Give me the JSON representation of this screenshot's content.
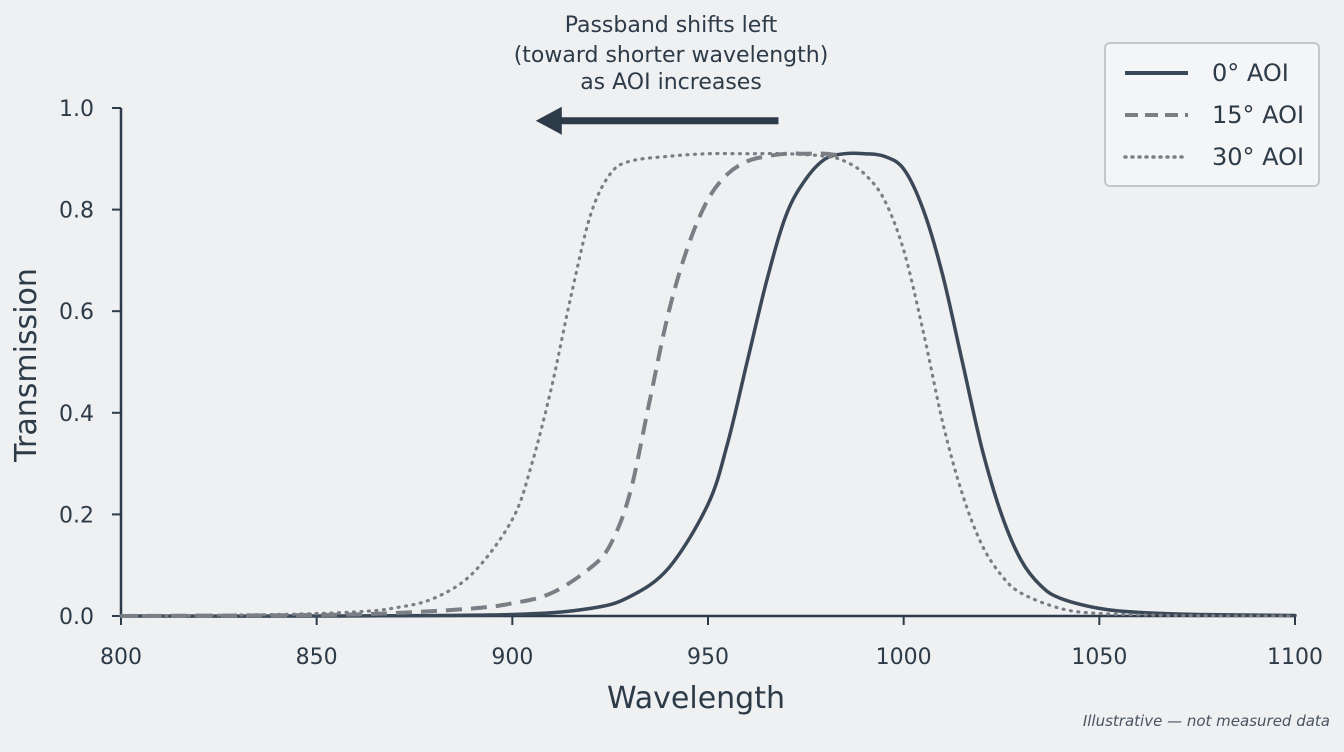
{
  "chart_data": {
    "type": "line",
    "xlabel": "Wavelength",
    "ylabel": "Transmission",
    "xlim": [
      800,
      1100
    ],
    "ylim": [
      0,
      1.0
    ],
    "x_ticks": [
      "800",
      "850",
      "900",
      "950",
      "1000",
      "1050",
      "1100"
    ],
    "y_ticks": [
      "0.0",
      "0.2",
      "0.4",
      "0.6",
      "0.8",
      "1.0"
    ],
    "grid": false,
    "legend_position": "top-right",
    "annotation": {
      "lines": [
        "Passband shifts left",
        "(toward shorter wavelength)",
        "as AOI increases"
      ],
      "arrow_from_x": 968,
      "arrow_to_x": 906,
      "arrow_y": 0.975
    },
    "footnote": "Illustrative — not measured data",
    "series": [
      {
        "name": "0° AOI",
        "style": "solid",
        "color": "#3a4857",
        "x": [
          800,
          850,
          900,
          920,
          930,
          940,
          950,
          955,
          960,
          965,
          970,
          975,
          980,
          985,
          990,
          995,
          1000,
          1005,
          1010,
          1015,
          1020,
          1025,
          1030,
          1035,
          1040,
          1050,
          1060,
          1075,
          1100
        ],
        "y": [
          0.0,
          0.0,
          0.003,
          0.015,
          0.038,
          0.095,
          0.22,
          0.34,
          0.5,
          0.66,
          0.79,
          0.86,
          0.9,
          0.91,
          0.91,
          0.905,
          0.88,
          0.8,
          0.67,
          0.5,
          0.33,
          0.2,
          0.11,
          0.06,
          0.035,
          0.015,
          0.007,
          0.003,
          0.001
        ]
      },
      {
        "name": "15° AOI",
        "style": "dashed",
        "color": "#7b7f85",
        "x": [
          800,
          850,
          870,
          890,
          900,
          910,
          920,
          925,
          930,
          935,
          940,
          945,
          950,
          955,
          960,
          965,
          970,
          975,
          980,
          985
        ],
        "y": [
          0.0,
          0.002,
          0.006,
          0.015,
          0.025,
          0.045,
          0.095,
          0.14,
          0.24,
          0.42,
          0.6,
          0.73,
          0.82,
          0.87,
          0.895,
          0.905,
          0.91,
          0.91,
          0.91,
          0.905
        ]
      },
      {
        "name": "30° AOI",
        "style": "dotted",
        "color": "#7b7f85",
        "x": [
          800,
          840,
          860,
          870,
          880,
          890,
          900,
          905,
          910,
          915,
          920,
          925,
          930,
          940,
          950,
          960,
          970,
          980,
          985,
          990,
          995,
          1000,
          1005,
          1010,
          1015,
          1020,
          1025,
          1030,
          1040,
          1050,
          1070,
          1100
        ],
        "y": [
          0.0,
          0.003,
          0.008,
          0.016,
          0.035,
          0.085,
          0.19,
          0.3,
          0.45,
          0.63,
          0.79,
          0.87,
          0.895,
          0.905,
          0.91,
          0.91,
          0.91,
          0.905,
          0.895,
          0.87,
          0.82,
          0.72,
          0.56,
          0.38,
          0.24,
          0.14,
          0.08,
          0.045,
          0.015,
          0.005,
          0.001,
          0.0
        ]
      }
    ]
  }
}
